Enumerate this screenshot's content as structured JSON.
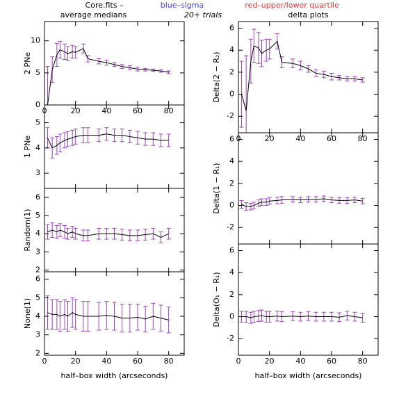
{
  "header": {
    "file": "Core.fits  –",
    "sigma": "blue–sigma",
    "quartile": "red–upper/lower quartile",
    "trials": "20+ trials"
  },
  "chart_data": [
    {
      "type": "line",
      "title": "average medians",
      "ylabel": "2 PNe",
      "xlim": [
        0,
        90
      ],
      "ylim": [
        0,
        13
      ],
      "xticks": [
        0,
        20,
        40,
        60,
        80
      ],
      "yticks": [
        0,
        5,
        10
      ],
      "show_xtick_labels": true,
      "x": [
        2,
        5,
        8,
        10,
        13,
        15,
        18,
        20,
        25,
        28,
        35,
        40,
        45,
        50,
        55,
        60,
        65,
        70,
        75,
        80
      ],
      "series": [
        {
          "color": "#000000",
          "error_color": "#a040c0",
          "values": [
            0,
            5.5,
            7.8,
            8.6,
            8.3,
            8.0,
            8.3,
            8.2,
            8.8,
            7.2,
            6.8,
            6.6,
            6.3,
            6.0,
            5.8,
            5.6,
            5.5,
            5.4,
            5.3,
            5.1
          ],
          "errors": [
            6,
            2,
            1.8,
            1.3,
            1.2,
            1.1,
            1.0,
            0.9,
            0.7,
            0.5,
            0.4,
            0.4,
            0.3,
            0.3,
            0.3,
            0.3,
            0.2,
            0.2,
            0.2,
            0.2
          ]
        }
      ]
    },
    {
      "type": "line",
      "ylabel": "1 PNe",
      "xlim": [
        0,
        90
      ],
      "ylim": [
        2.4,
        5.7
      ],
      "xticks": [
        0,
        20,
        40,
        60,
        80
      ],
      "yticks": [
        3,
        4,
        5
      ],
      "show_xtick_labels": false,
      "x": [
        2,
        5,
        8,
        10,
        13,
        15,
        18,
        20,
        25,
        28,
        35,
        40,
        45,
        50,
        55,
        60,
        65,
        70,
        75,
        80
      ],
      "series": [
        {
          "color": "#000000",
          "error_color": "#a040c0",
          "values": [
            4.4,
            4.0,
            4.1,
            4.2,
            4.3,
            4.35,
            4.4,
            4.45,
            4.5,
            4.5,
            4.5,
            4.55,
            4.5,
            4.5,
            4.45,
            4.4,
            4.35,
            4.35,
            4.3,
            4.3
          ],
          "errors": [
            0.4,
            0.4,
            0.35,
            0.35,
            0.3,
            0.3,
            0.3,
            0.3,
            0.3,
            0.3,
            0.25,
            0.25,
            0.25,
            0.25,
            0.25,
            0.25,
            0.25,
            0.25,
            0.25,
            0.25
          ]
        }
      ]
    },
    {
      "type": "line",
      "ylabel": "Random(1)",
      "xlim": [
        0,
        90
      ],
      "ylim": [
        1.9,
        6.5
      ],
      "xticks": [
        0,
        20,
        40,
        60,
        80
      ],
      "yticks": [
        2,
        3,
        4,
        5,
        6
      ],
      "show_xtick_labels": false,
      "x": [
        2,
        5,
        8,
        10,
        13,
        15,
        18,
        20,
        25,
        28,
        35,
        40,
        45,
        50,
        55,
        60,
        65,
        70,
        75,
        80
      ],
      "series": [
        {
          "color": "#000000",
          "error_color": "#a040c0",
          "values": [
            4.1,
            4.2,
            4.1,
            4.2,
            4.1,
            4.0,
            4.1,
            4.0,
            3.9,
            3.9,
            4.0,
            4.0,
            4.0,
            3.95,
            3.9,
            3.9,
            3.95,
            4.0,
            3.8,
            4.0
          ],
          "errors": [
            0.4,
            0.4,
            0.35,
            0.35,
            0.35,
            0.3,
            0.3,
            0.3,
            0.3,
            0.3,
            0.3,
            0.3,
            0.3,
            0.3,
            0.3,
            0.3,
            0.3,
            0.3,
            0.3,
            0.3
          ]
        }
      ]
    },
    {
      "type": "line",
      "ylabel": "None(1)",
      "xlabel": "half–box width (arcseconds)",
      "xlim": [
        0,
        90
      ],
      "ylim": [
        1.9,
        6.4
      ],
      "xticks": [
        0,
        20,
        40,
        60,
        80
      ],
      "yticks": [
        2,
        3,
        4,
        5,
        6
      ],
      "show_xtick_labels": true,
      "x": [
        2,
        5,
        8,
        10,
        13,
        15,
        18,
        20,
        25,
        28,
        35,
        40,
        45,
        50,
        55,
        60,
        65,
        70,
        75,
        80
      ],
      "series": [
        {
          "color": "#000000",
          "error_color": "#a040c0",
          "values": [
            4.2,
            4.1,
            4.1,
            4.0,
            4.1,
            4.0,
            4.2,
            4.1,
            4.0,
            4.0,
            4.0,
            4.05,
            4.0,
            3.9,
            3.9,
            3.95,
            3.85,
            4.0,
            3.9,
            3.8
          ],
          "errors": [
            0.9,
            0.8,
            0.8,
            0.8,
            0.8,
            0.8,
            0.8,
            0.8,
            0.8,
            0.8,
            0.75,
            0.75,
            0.75,
            0.75,
            0.75,
            0.7,
            0.7,
            0.7,
            0.7,
            0.7
          ]
        }
      ]
    },
    {
      "type": "line",
      "title": "delta plots",
      "ylabel": "Delta(2 − R₂)",
      "xlim": [
        0,
        90
      ],
      "ylim": [
        -3.5,
        6.6
      ],
      "xticks": [
        0,
        20,
        40,
        60,
        80
      ],
      "yticks": [
        -2,
        0,
        2,
        4,
        6
      ],
      "show_xtick_labels": true,
      "x": [
        2,
        5,
        8,
        10,
        13,
        15,
        18,
        20,
        25,
        28,
        35,
        40,
        45,
        50,
        55,
        60,
        65,
        70,
        75,
        80
      ],
      "series": [
        {
          "color": "#000000",
          "error_color": "#a040c0",
          "values": [
            0,
            -1.5,
            3.0,
            4.4,
            4.2,
            3.7,
            4.0,
            4.1,
            4.8,
            2.9,
            2.8,
            2.6,
            2.3,
            1.9,
            1.8,
            1.6,
            1.5,
            1.4,
            1.4,
            1.3
          ],
          "errors": [
            3,
            5,
            2,
            1.5,
            1.4,
            1.2,
            1.0,
            0.9,
            0.7,
            0.5,
            0.4,
            0.4,
            0.3,
            0.3,
            0.3,
            0.3,
            0.2,
            0.2,
            0.2,
            0.2
          ]
        }
      ]
    },
    {
      "type": "line",
      "ylabel": "Delta(1 − R₁)",
      "xlim": [
        0,
        90
      ],
      "ylim": [
        -3.5,
        6.6
      ],
      "xticks": [
        0,
        20,
        40,
        60,
        80
      ],
      "yticks": [
        -2,
        0,
        2,
        4,
        6
      ],
      "show_xtick_labels": false,
      "x": [
        2,
        5,
        8,
        10,
        13,
        15,
        18,
        20,
        25,
        28,
        35,
        40,
        45,
        50,
        55,
        60,
        65,
        70,
        75,
        80
      ],
      "series": [
        {
          "color": "#000000",
          "error_color": "#a040c0",
          "values": [
            0.1,
            -0.1,
            -0.1,
            0.0,
            0.2,
            0.3,
            0.3,
            0.4,
            0.45,
            0.5,
            0.55,
            0.5,
            0.55,
            0.55,
            0.6,
            0.5,
            0.45,
            0.45,
            0.5,
            0.4
          ],
          "errors": [
            0.35,
            0.35,
            0.3,
            0.3,
            0.3,
            0.3,
            0.3,
            0.3,
            0.3,
            0.3,
            0.25,
            0.25,
            0.25,
            0.25,
            0.25,
            0.25,
            0.25,
            0.25,
            0.25,
            0.25
          ]
        }
      ]
    },
    {
      "type": "line",
      "ylabel": "Delta(O₁ − R₁)",
      "xlabel": "half–box width (arcseconds)",
      "xlim": [
        0,
        90
      ],
      "ylim": [
        -3.5,
        6.6
      ],
      "xticks": [
        0,
        20,
        40,
        60,
        80
      ],
      "yticks": [
        -2,
        0,
        2,
        4,
        6
      ],
      "show_xtick_labels": true,
      "x": [
        2,
        5,
        8,
        10,
        13,
        15,
        18,
        20,
        25,
        28,
        35,
        40,
        45,
        50,
        55,
        60,
        65,
        70,
        75,
        80
      ],
      "series": [
        {
          "color": "#000000",
          "error_color": "#a040c0",
          "values": [
            0.0,
            0.0,
            -0.1,
            0.0,
            0.05,
            0.1,
            0.0,
            0.0,
            0.05,
            0.0,
            0.05,
            0.0,
            0.05,
            0.0,
            0.0,
            0.0,
            -0.05,
            0.1,
            0.0,
            -0.1
          ],
          "errors": [
            0.5,
            0.5,
            0.5,
            0.5,
            0.5,
            0.5,
            0.5,
            0.5,
            0.45,
            0.45,
            0.4,
            0.4,
            0.4,
            0.4,
            0.4,
            0.4,
            0.4,
            0.4,
            0.4,
            0.4
          ]
        }
      ]
    }
  ]
}
